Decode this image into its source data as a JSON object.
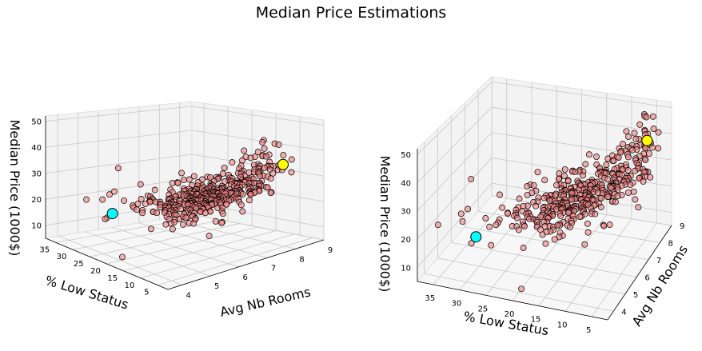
{
  "title": "Median Price Estimations",
  "colors": {
    "points": "#f08080",
    "point_edge": "#000000",
    "marker_low": "#00ffff",
    "marker_high": "#ffff00"
  },
  "chart_data": [
    {
      "type": "scatter",
      "view": "left",
      "xlabel": "Avg Nb Rooms",
      "ylabel": "% Low Status",
      "zlabel": "Median Price (1000$)",
      "x_ticks": [
        "4",
        "5",
        "6",
        "7",
        "8",
        "9"
      ],
      "y_ticks": [
        "35",
        "30",
        "25",
        "20",
        "15",
        "10",
        "5"
      ],
      "z_ticks": [
        "10",
        "20",
        "30",
        "40",
        "50"
      ],
      "xlim": [
        3.5,
        9
      ],
      "ylim": [
        2,
        38
      ],
      "zlim": [
        5,
        52
      ],
      "highlight_points": [
        {
          "color": "cyan",
          "rooms": 4.9,
          "lstat": 30,
          "price": 14
        },
        {
          "color": "yellow",
          "rooms": 7.8,
          "lstat": 4,
          "price": 37
        }
      ]
    },
    {
      "type": "scatter",
      "view": "right",
      "xlabel": "% Low Status",
      "ylabel": "Avg Nb Rooms",
      "zlabel": "Median Price (1000$)",
      "x_ticks": [
        "35",
        "30",
        "25",
        "20",
        "15",
        "10",
        "5"
      ],
      "y_ticks": [
        "4",
        "5",
        "6",
        "7",
        "8",
        "9"
      ],
      "z_ticks": [
        "10",
        "20",
        "30",
        "40",
        "50"
      ],
      "xlim": [
        2,
        38
      ],
      "ylim": [
        3.5,
        9
      ],
      "zlim": [
        5,
        52
      ],
      "highlight_points": [
        {
          "color": "cyan",
          "rooms": 4.9,
          "lstat": 30,
          "price": 14
        },
        {
          "color": "yellow",
          "rooms": 7.8,
          "lstat": 4,
          "price": 37
        }
      ]
    }
  ]
}
